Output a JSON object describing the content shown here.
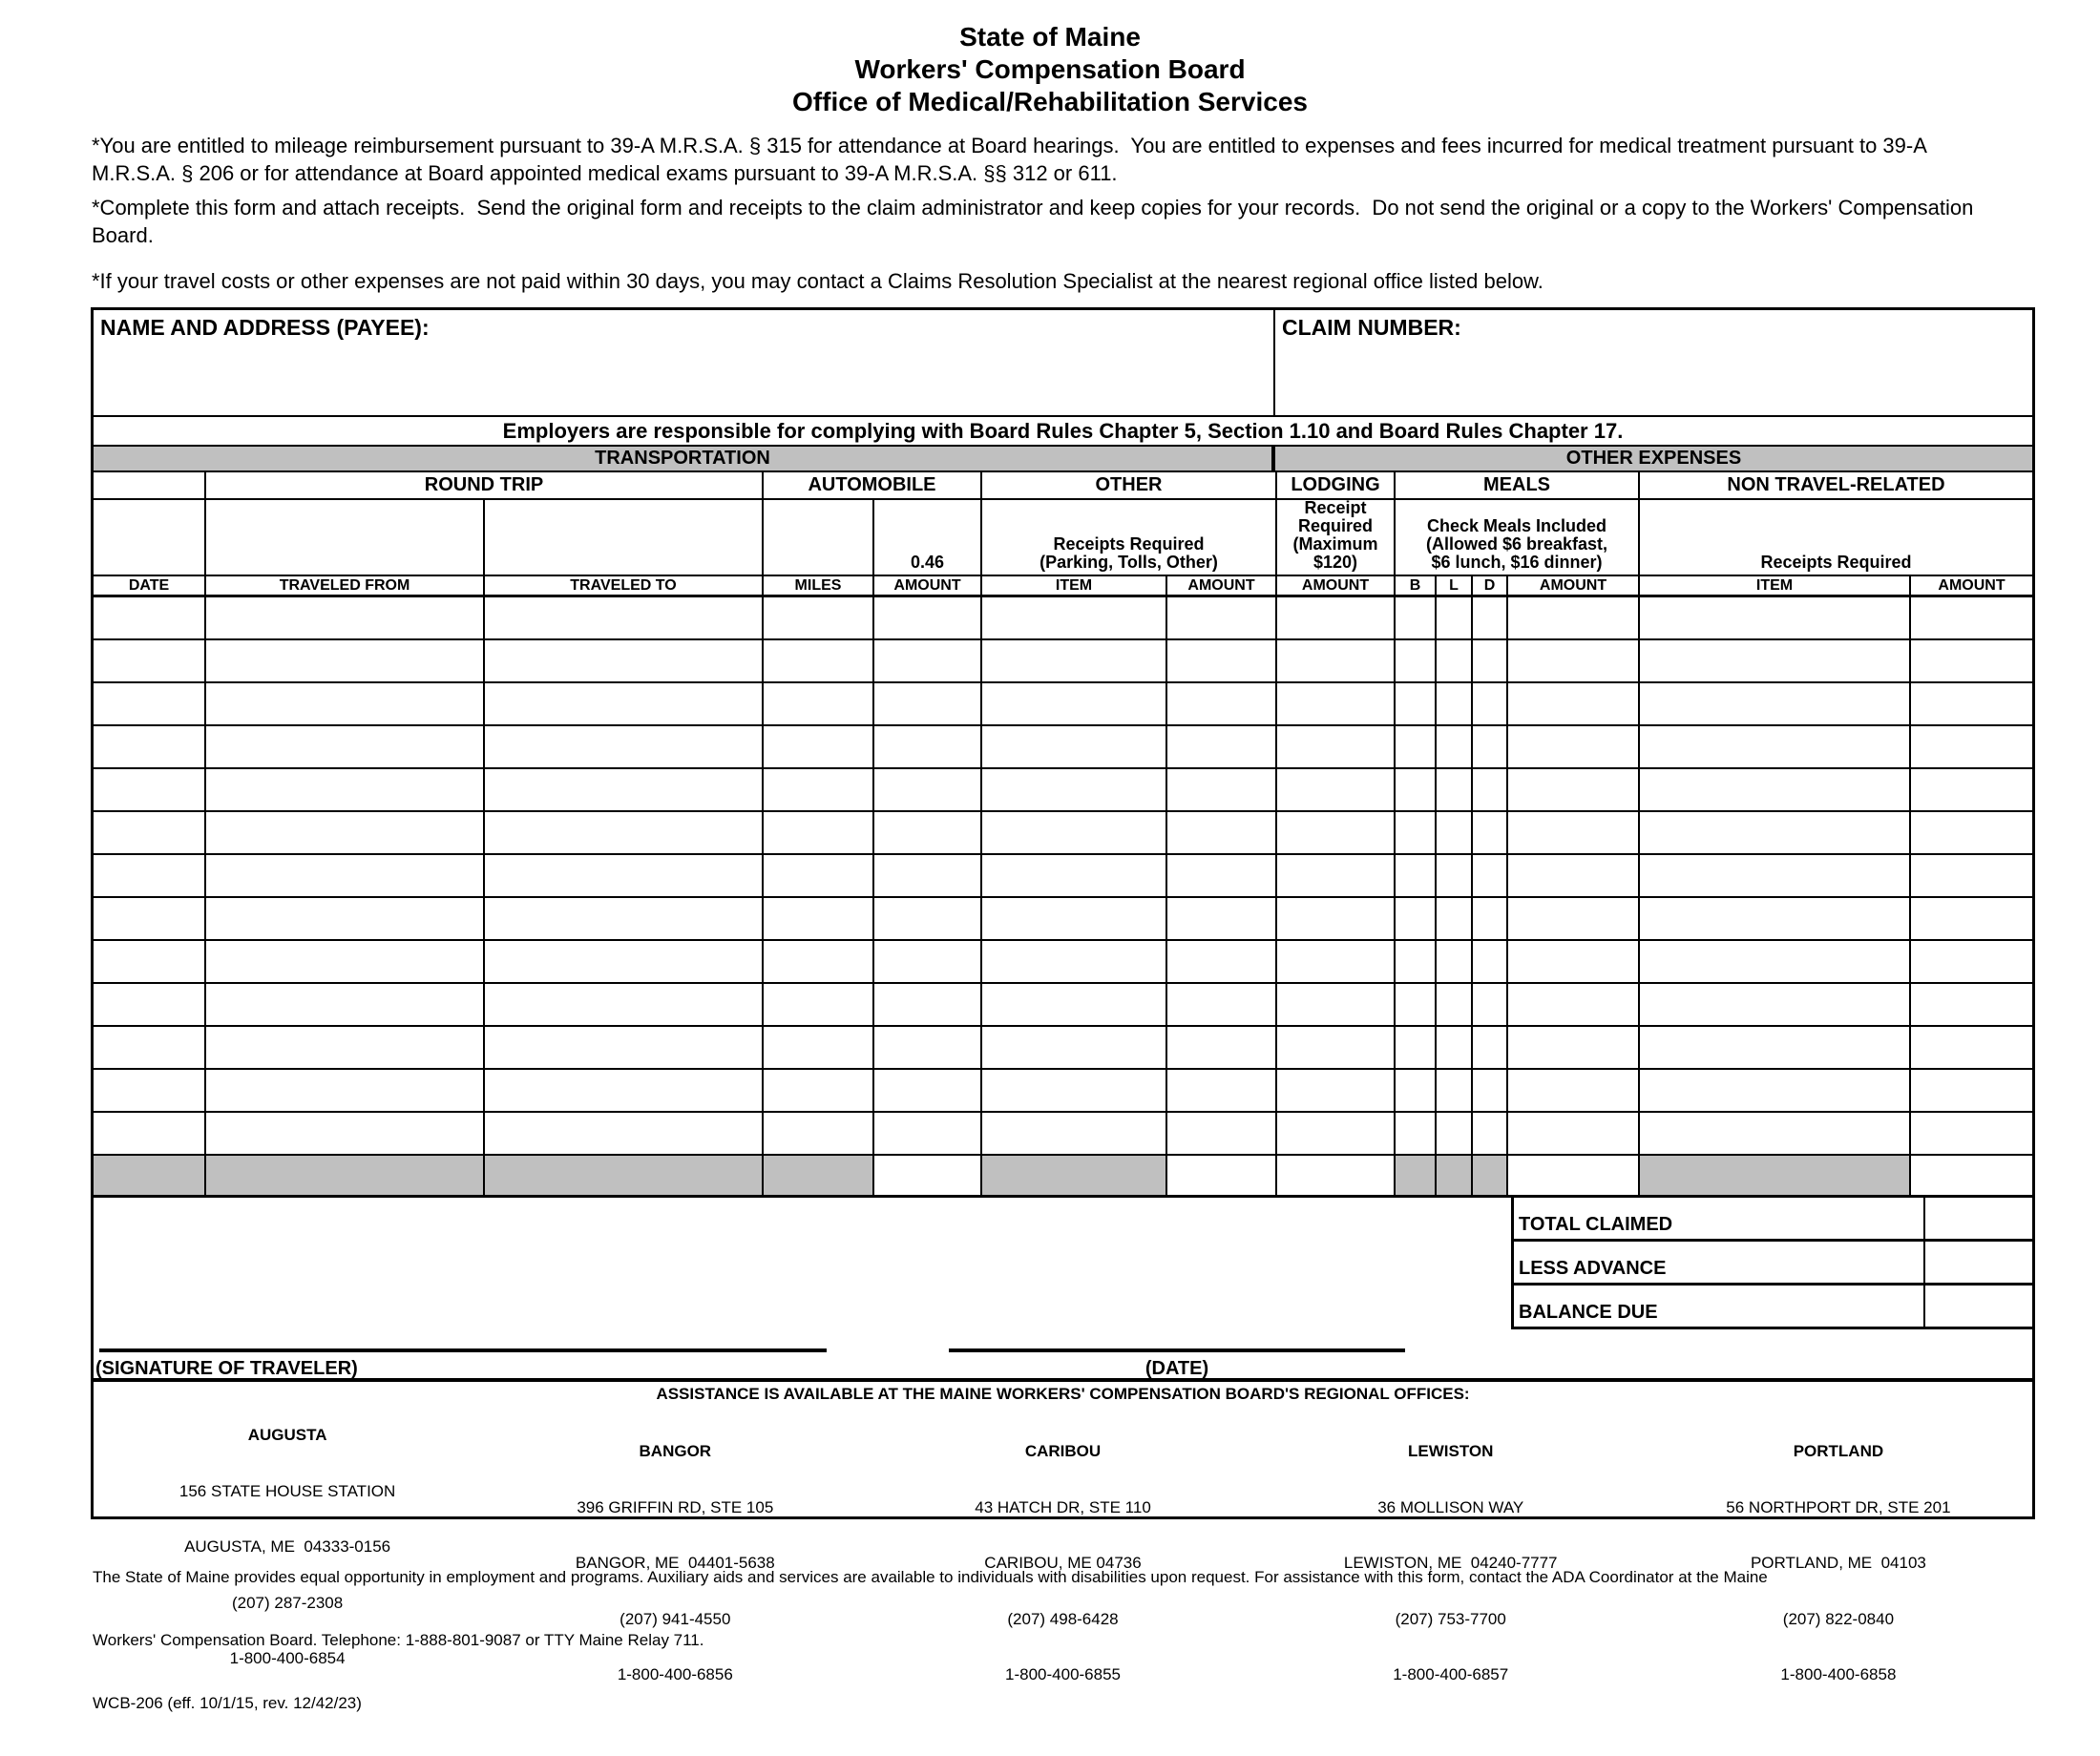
{
  "header": {
    "title_lines": [
      "State of Maine",
      "Workers' Compensation Board",
      "Office of Medical/Rehabilitation Services"
    ],
    "paragraphs": [
      "*You are entitled to mileage reimbursement pursuant to 39-A M.R.S.A. § 315 for attendance at Board hearings.  You are entitled to expenses and fees incurred for medical treatment pursuant to 39-A M.R.S.A. § 206 or for attendance at Board appointed medical exams pursuant to 39-A M.R.S.A. §§ 312 or 611.",
      "*Complete this form and attach receipts.  Send the original form and receipts to the claim administrator and keep copies for your records.  Do not send the original or a copy to the Workers' Compensation Board.",
      "*If your travel costs or other expenses are not paid within 30 days, you may contact a Claims Resolution Specialist at the nearest regional office listed below."
    ]
  },
  "payee": {
    "name_label": "NAME AND ADDRESS (PAYEE):",
    "claim_label": "CLAIM NUMBER:"
  },
  "rules_note": "Employers are responsible for complying with Board Rules Chapter 5, Section 1.10 and Board Rules Chapter 17.",
  "sections": {
    "transportation": "TRANSPORTATION",
    "other_expenses": "OTHER EXPENSES"
  },
  "groups": {
    "round_trip": "ROUND TRIP",
    "automobile": "AUTOMOBILE",
    "other": "OTHER",
    "lodging": "LODGING",
    "meals": "MEALS",
    "non_travel": "NON TRAVEL-RELATED"
  },
  "notes": {
    "mileage_rate": "0.46",
    "other_receipts": "Receipts Required\n(Parking, Tolls, Other)",
    "lodging_receipt": "Receipt\nRequired\n(Maximum\n$120)",
    "meals_note": "Check Meals Included\n(Allowed $6 breakfast,\n$6 lunch, $16 dinner)",
    "non_travel_receipts": "Receipts Required"
  },
  "columns": [
    "DATE",
    "TRAVELED FROM",
    "TRAVELED TO",
    "MILES",
    "AMOUNT",
    "ITEM",
    "AMOUNT",
    "AMOUNT",
    "B",
    "L",
    "D",
    "AMOUNT",
    "ITEM",
    "AMOUNT"
  ],
  "totals": {
    "labels": [
      "TOTAL CLAIMED",
      "LESS ADVANCE",
      "BALANCE DUE"
    ]
  },
  "signature": {
    "traveler_label": "(SIGNATURE OF TRAVELER)",
    "date_label": "(DATE)"
  },
  "offices": {
    "assistance_header": "ASSISTANCE IS AVAILABLE AT THE MAINE WORKERS' COMPENSATION BOARD'S REGIONAL OFFICES:",
    "list": [
      {
        "city": "AUGUSTA",
        "lines": [
          "156 STATE HOUSE STATION",
          "AUGUSTA, ME  04333-0156",
          "(207) 287-2308",
          "1-800-400-6854"
        ]
      },
      {
        "city": "BANGOR",
        "lines": [
          "396 GRIFFIN RD, STE 105",
          "BANGOR, ME  04401-5638",
          "(207) 941-4550",
          "1-800-400-6856"
        ]
      },
      {
        "city": "CARIBOU",
        "lines": [
          "43 HATCH DR, STE 110",
          "CARIBOU, ME 04736",
          "(207) 498-6428",
          "1-800-400-6855"
        ]
      },
      {
        "city": "LEWISTON",
        "lines": [
          "36 MOLLISON WAY",
          "LEWISTON, ME  04240-7777",
          "(207) 753-7700",
          "1-800-400-6857"
        ]
      },
      {
        "city": "PORTLAND",
        "lines": [
          "56 NORTHPORT DR, STE 201",
          "PORTLAND, ME  04103",
          "(207) 822-0840",
          "1-800-400-6858"
        ]
      }
    ]
  },
  "footer": {
    "lines": [
      "The State of Maine provides equal opportunity in employment and programs. Auxiliary aids and services are available to individuals with disabilities upon request. For assistance with this form, contact the ADA Coordinator at the Maine",
      "Workers' Compensation Board. Telephone: 1-888-801-9087 or TTY Maine Relay 711.",
      "WCB-206 (eff. 10/1/15, rev. 12/42/23)"
    ]
  }
}
